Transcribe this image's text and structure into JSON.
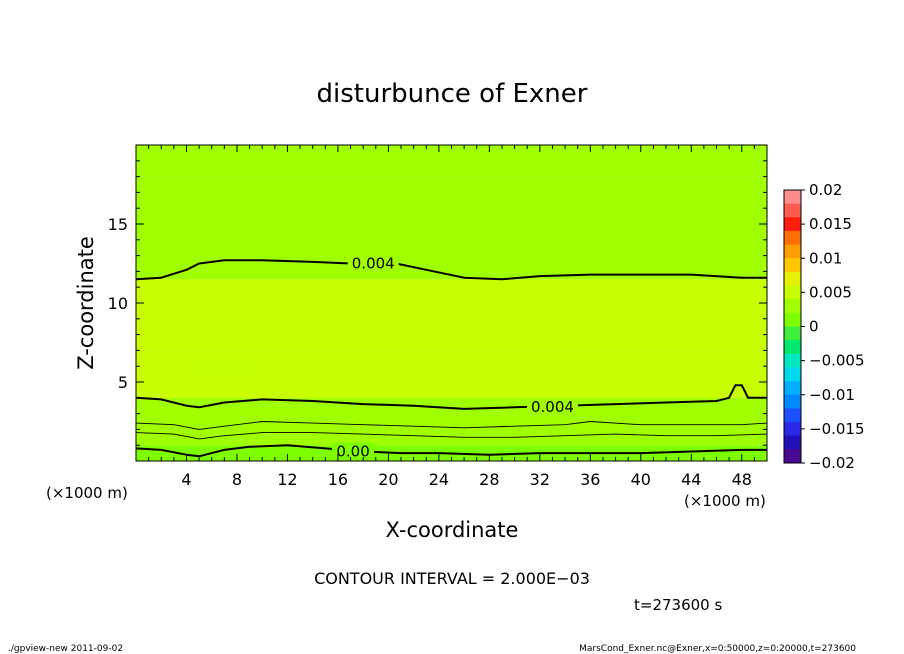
{
  "chart_data": {
    "type": "heatmap",
    "title": "disturbunce of Exner",
    "xlabel": "X-coordinate",
    "ylabel": "Z-coordinate",
    "x_unit": "(×1000 m)",
    "z_unit": "(×1000 m)",
    "xlim": [
      0,
      50
    ],
    "ylim": [
      0,
      20
    ],
    "x_ticks": [
      "4",
      "8",
      "12",
      "16",
      "20",
      "24",
      "28",
      "32",
      "36",
      "40",
      "44",
      "48"
    ],
    "y_ticks": [
      "5",
      "10",
      "15"
    ],
    "colorbar": {
      "ticks": [
        "0.02",
        "0.015",
        "0.01",
        "0.005",
        "0",
        "−0.005",
        "−0.01",
        "−0.015",
        "−0.02"
      ],
      "range": [
        -0.02,
        0.02
      ],
      "colors": [
        "#ff8c8c",
        "#ff5a50",
        "#ff1e10",
        "#ff6e00",
        "#ff9e00",
        "#ffc800",
        "#e6f000",
        "#c8ff00",
        "#a0ff00",
        "#7eff00",
        "#3eef3e",
        "#00e870",
        "#00e8c0",
        "#00d8ee",
        "#00b0ff",
        "#0088ff",
        "#1c50ff",
        "#2828e6",
        "#2010b8",
        "#4a0a90"
      ]
    },
    "bands": [
      {
        "z_bottom": 0.0,
        "z_top": 1.0,
        "level": 0.0005
      },
      {
        "z_bottom": 1.0,
        "z_top": 4.0,
        "level": 0.0025
      },
      {
        "z_bottom": 4.0,
        "z_top": 5.0,
        "level": 0.0042
      },
      {
        "z_bottom": 5.0,
        "z_top": 7.0,
        "level": 0.0052
      },
      {
        "z_bottom": 7.0,
        "z_top": 11.5,
        "level": 0.0045
      },
      {
        "z_bottom": 11.5,
        "z_top": 18.0,
        "level": 0.0032
      },
      {
        "z_bottom": 18.0,
        "z_top": 20.0,
        "level": 0.0022
      }
    ],
    "contours": [
      {
        "label": "0.004",
        "label_x": 18.8,
        "bold": true,
        "x": [
          0,
          2,
          4,
          5,
          7,
          10,
          14,
          17,
          20,
          23,
          26,
          29,
          32,
          36,
          40,
          44,
          48,
          50
        ],
        "z": [
          11.5,
          11.6,
          12.1,
          12.5,
          12.7,
          12.7,
          12.6,
          12.5,
          12.6,
          12.1,
          11.6,
          11.5,
          11.7,
          11.8,
          11.8,
          11.8,
          11.6,
          11.6
        ]
      },
      {
        "label": "0.004",
        "label_x": 33.0,
        "bold": true,
        "x": [
          0,
          2,
          4,
          5,
          7,
          10,
          14,
          18,
          22,
          26,
          30,
          34,
          38,
          42,
          46,
          47,
          47.5,
          48,
          48.5,
          50
        ],
        "z": [
          4.0,
          3.9,
          3.5,
          3.4,
          3.7,
          3.9,
          3.8,
          3.6,
          3.5,
          3.3,
          3.4,
          3.5,
          3.6,
          3.7,
          3.8,
          4.0,
          4.8,
          4.8,
          4.0,
          4.0
        ]
      },
      {
        "label": "",
        "label_x": null,
        "bold": false,
        "x": [
          0,
          3,
          5,
          7,
          10,
          14,
          18,
          22,
          26,
          30,
          34,
          36,
          40,
          44,
          48,
          50
        ],
        "z": [
          2.4,
          2.3,
          2.0,
          2.2,
          2.5,
          2.4,
          2.3,
          2.2,
          2.1,
          2.2,
          2.3,
          2.5,
          2.3,
          2.3,
          2.3,
          2.4
        ]
      },
      {
        "label": "",
        "label_x": null,
        "bold": false,
        "x": [
          0,
          3,
          5,
          7,
          10,
          14,
          18,
          22,
          26,
          30,
          34,
          38,
          42,
          46,
          50
        ],
        "z": [
          1.8,
          1.7,
          1.4,
          1.6,
          1.8,
          1.8,
          1.7,
          1.6,
          1.5,
          1.5,
          1.6,
          1.7,
          1.6,
          1.6,
          1.7
        ]
      },
      {
        "label": "0.00",
        "label_x": 17.2,
        "bold": true,
        "x": [
          0,
          2,
          4,
          5,
          7,
          9,
          12,
          15,
          18,
          21,
          24,
          28,
          32,
          36,
          40,
          44,
          48,
          50
        ],
        "z": [
          0.8,
          0.7,
          0.4,
          0.3,
          0.7,
          0.9,
          1.0,
          0.8,
          0.6,
          0.5,
          0.5,
          0.4,
          0.5,
          0.5,
          0.5,
          0.6,
          0.7,
          0.7
        ]
      }
    ],
    "contour_interval": "CONTOUR INTERVAL = 2.000E−03",
    "time_label": "t=273600 s"
  },
  "footer": {
    "left": "./gpview-new  2011-09-02",
    "right": "MarsCond_Exner.nc@Exner,x=0:50000,z=0:20000,t=273600"
  }
}
